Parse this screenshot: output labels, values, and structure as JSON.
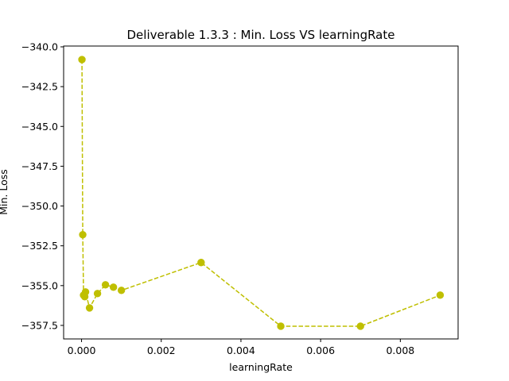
{
  "chart_data": {
    "type": "line",
    "title": "Deliverable 1.3.3 : Min. Loss VS learningRate",
    "xlabel": "learningRate",
    "ylabel": "Min. Loss",
    "xlim": [
      -0.00045,
      0.00945
    ],
    "ylim": [
      -358.35,
      -339.95
    ],
    "xticks": [
      0.0,
      0.002,
      0.004,
      0.006,
      0.008
    ],
    "xtick_labels": [
      "0.000",
      "0.002",
      "0.004",
      "0.006",
      "0.008"
    ],
    "yticks": [
      -340.0,
      -342.5,
      -345.0,
      -347.5,
      -350.0,
      -352.5,
      -355.0,
      -357.5
    ],
    "ytick_labels": [
      "−340.0",
      "−342.5",
      "−345.0",
      "−347.5",
      "−350.0",
      "−352.5",
      "−355.0",
      "−357.5"
    ],
    "grid": false,
    "series": [
      {
        "color": "#bfbf00",
        "line_style": "dashed",
        "marker": "circle",
        "x": [
          1e-05,
          3e-05,
          5e-05,
          8e-05,
          0.0001,
          0.0002,
          0.0004,
          0.0006,
          0.0008,
          0.001,
          0.003,
          0.005,
          0.007,
          0.009
        ],
        "y": [
          -340.8,
          -351.8,
          -355.6,
          -355.7,
          -355.4,
          -356.4,
          -355.5,
          -354.95,
          -355.1,
          -355.3,
          -353.55,
          -357.55,
          -357.55,
          -355.6
        ]
      }
    ]
  }
}
